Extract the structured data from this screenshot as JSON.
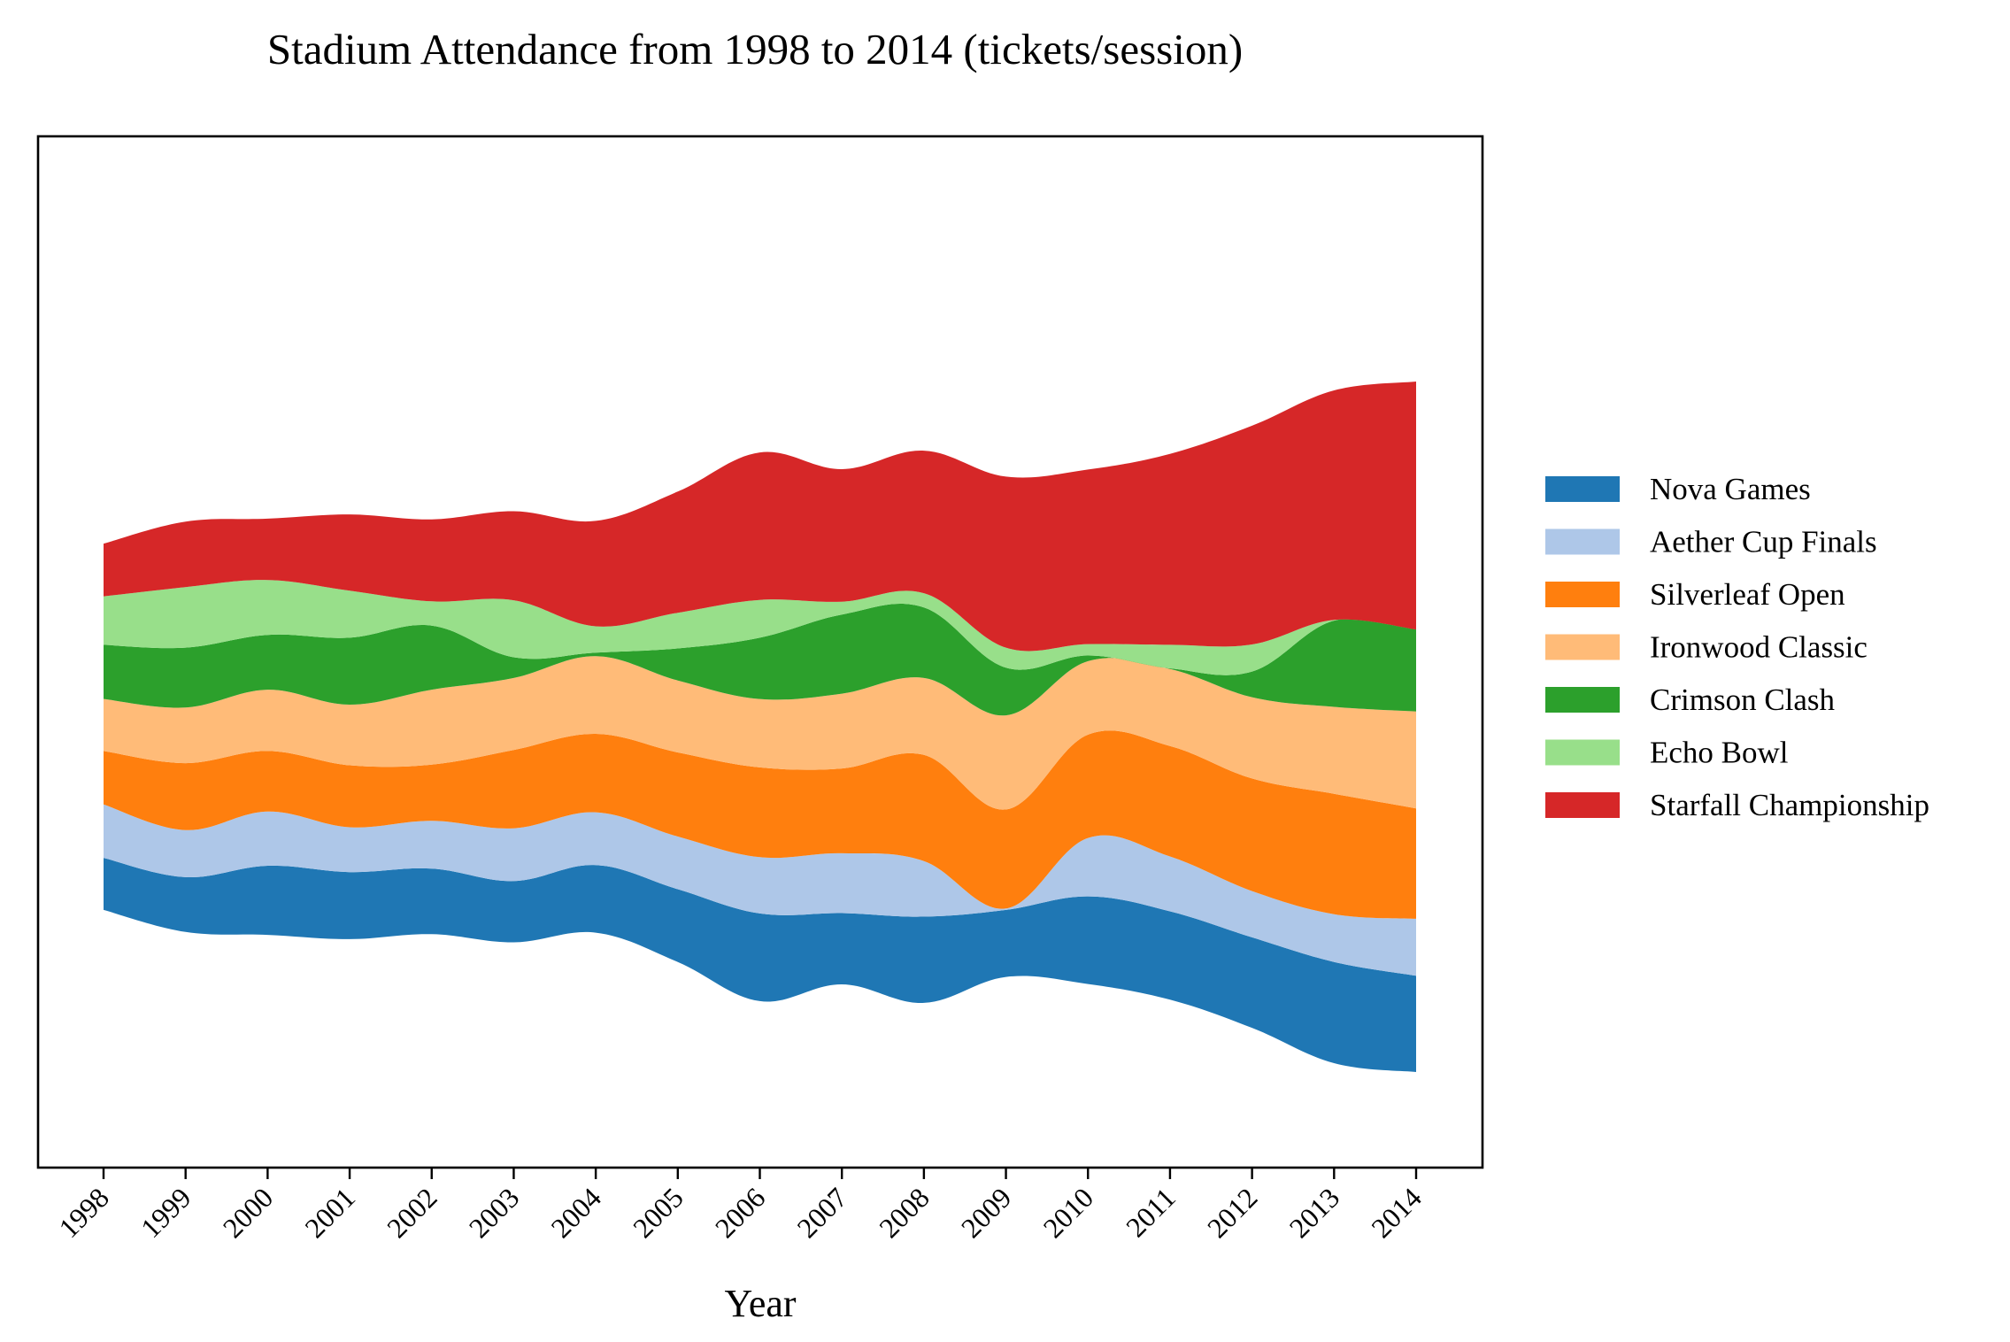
{
  "chart_data": {
    "type": "area",
    "variant": "streamgraph",
    "title": "Stadium Attendance from 1998 to 2014 (tickets/session)",
    "xlabel": "Year",
    "ylabel": "",
    "y_axis_visible": false,
    "grid": false,
    "legend_position": "right",
    "categories": [
      "1998",
      "1999",
      "2000",
      "2001",
      "2002",
      "2003",
      "2004",
      "2005",
      "2006",
      "2007",
      "2008",
      "2009",
      "2010",
      "2011",
      "2012",
      "2013",
      "2014"
    ],
    "series": [
      {
        "name": "Nova Games",
        "color": "#1f77b4",
        "values": [
          73,
          77,
          97,
          94,
          92,
          86,
          95,
          102,
          123,
          100,
          121,
          94,
          123,
          124,
          127,
          142,
          135
        ]
      },
      {
        "name": "Aether Cup Finals",
        "color": "#aec7e8",
        "values": [
          75,
          66,
          76,
          63,
          67,
          74,
          74,
          74,
          79,
          84,
          78,
          2,
          82,
          77,
          65,
          67,
          80
        ]
      },
      {
        "name": "Silverleaf Open",
        "color": "#ff7f0e",
        "values": [
          75,
          94,
          85,
          87,
          79,
          110,
          110,
          118,
          126,
          119,
          149,
          139,
          145,
          155,
          158,
          169,
          155
        ]
      },
      {
        "name": "Ironwood Classic",
        "color": "#ffbb78",
        "values": [
          73,
          78,
          86,
          85,
          105,
          101,
          109,
          101,
          96,
          105,
          108,
          132,
          103,
          108,
          114,
          122,
          136
        ]
      },
      {
        "name": "Crimson Clash",
        "color": "#2ca02c",
        "values": [
          76,
          84,
          77,
          94,
          90,
          29,
          5,
          45,
          86,
          111,
          99,
          67,
          8,
          1,
          36,
          121,
          115
        ]
      },
      {
        "name": "Echo Bowl",
        "color": "#98df8a",
        "values": [
          68,
          85,
          77,
          66,
          34,
          80,
          37,
          50,
          53,
          18,
          20,
          28,
          16,
          33,
          38,
          1,
          0
        ]
      },
      {
        "name": "Starfall Championship",
        "color": "#d62728",
        "values": [
          74,
          92,
          86,
          107,
          115,
          125,
          148,
          170,
          207,
          186,
          200,
          240,
          245,
          268,
          307,
          322,
          348
        ]
      }
    ]
  }
}
